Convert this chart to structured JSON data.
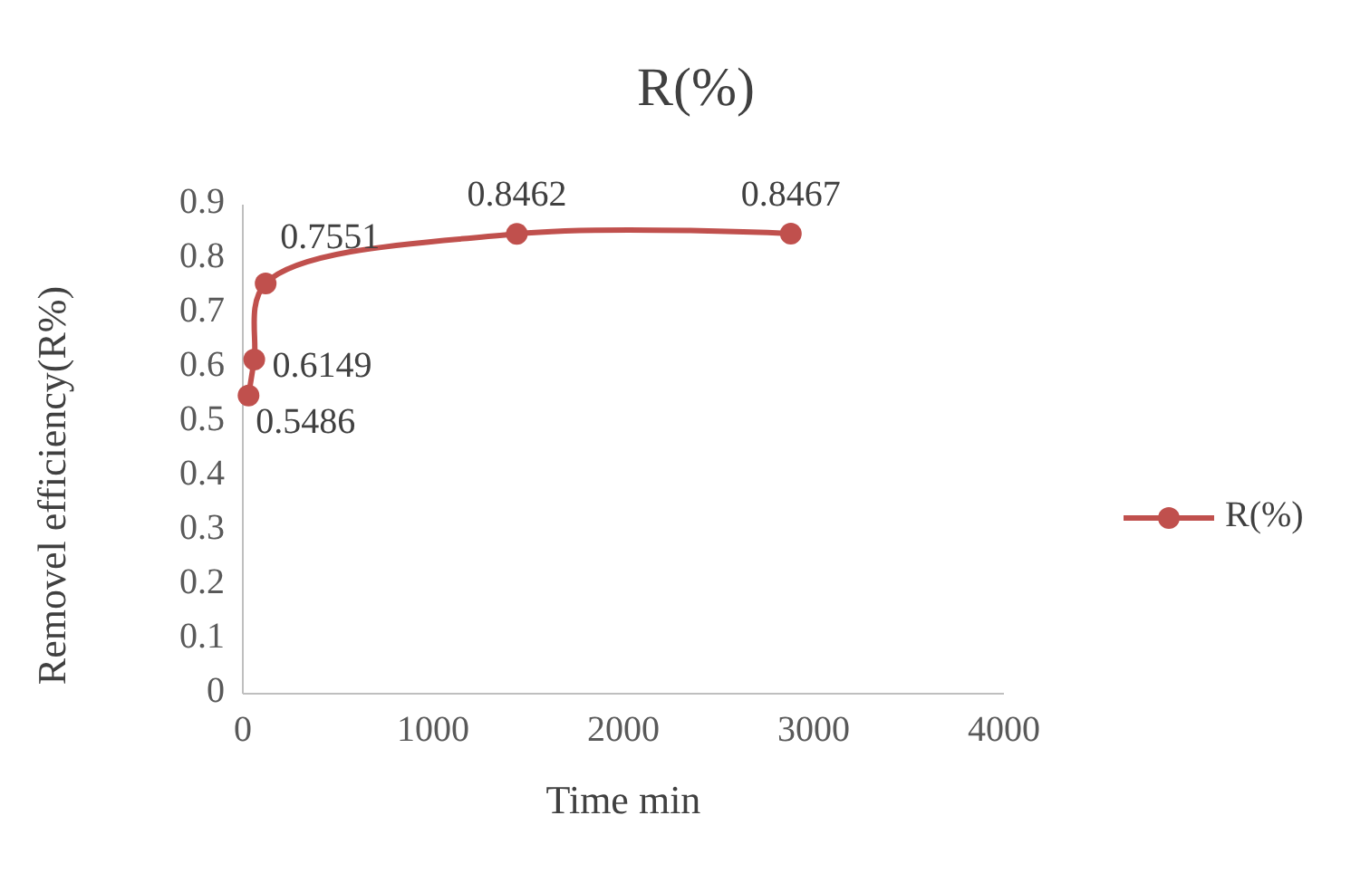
{
  "chart_data": {
    "type": "line",
    "title": "R(%)",
    "xlabel": "Time min",
    "ylabel": "Removel efficiency(R%)",
    "x": [
      30,
      60,
      120,
      1440,
      2880
    ],
    "series": [
      {
        "name": "R(%)",
        "color": "#c0504d",
        "values": [
          0.5486,
          0.6149,
          0.7551,
          0.8462,
          0.8467
        ]
      }
    ],
    "xlim": [
      0,
      4000
    ],
    "xticks": [
      0,
      1000,
      2000,
      3000,
      4000
    ],
    "ylim": [
      0,
      0.9
    ],
    "yticks": [
      0,
      0.1,
      0.2,
      0.3,
      0.4,
      0.5,
      0.6,
      0.7,
      0.8,
      0.9
    ],
    "grid": false,
    "legend": "right",
    "marker": "circle",
    "data_labels": true,
    "line_style": "solid"
  }
}
